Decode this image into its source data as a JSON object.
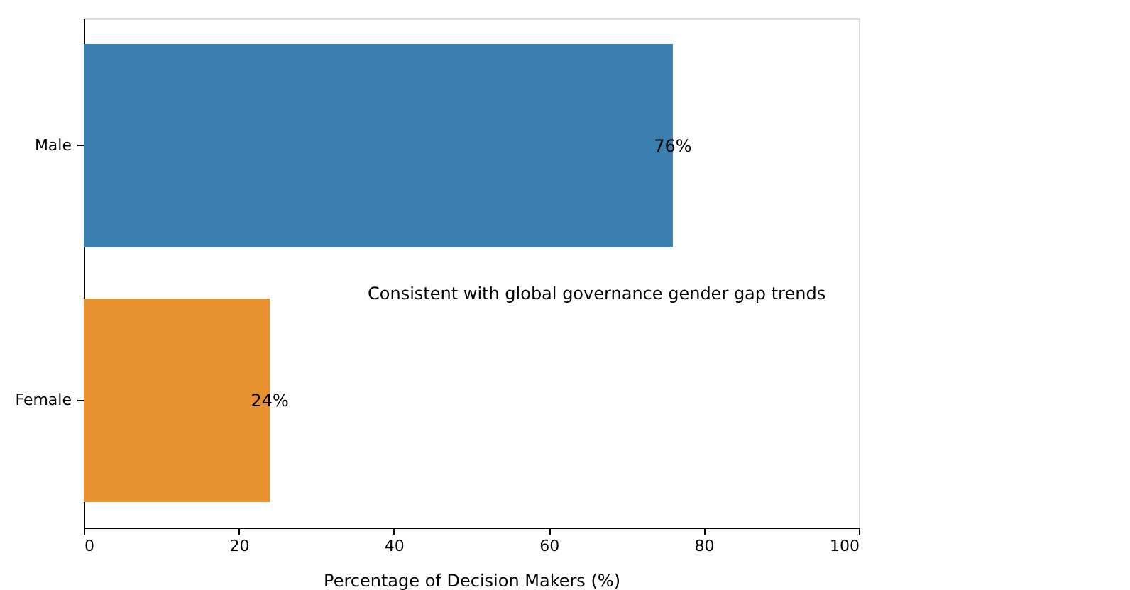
{
  "chart_data": {
    "type": "bar",
    "orientation": "horizontal",
    "xlabel": "Percentage of Decision Makers (%)",
    "categories": [
      "Male",
      "Female"
    ],
    "values": [
      76,
      24
    ],
    "colors": [
      "#3a7fb0",
      "#e8912f"
    ],
    "value_labels": [
      "76%",
      "24%"
    ],
    "xlim": [
      0,
      100
    ],
    "xticks": [
      0,
      20,
      40,
      60,
      80,
      100
    ],
    "annotations": [
      "Consistent with global governance gender gap trends"
    ]
  }
}
